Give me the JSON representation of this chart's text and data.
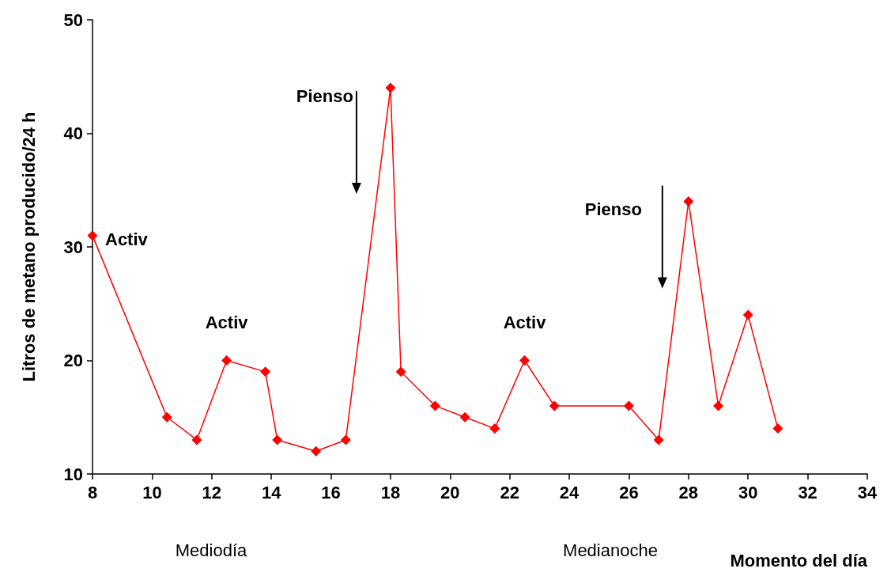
{
  "chart_data": {
    "type": "line",
    "xlabel": "Momento del día",
    "ylabel": "Litros de metano producido/24 h",
    "x": [
      8,
      10.5,
      11.5,
      12.5,
      13.8,
      14.2,
      15.5,
      16.5,
      18,
      18.35,
      19.5,
      20.5,
      21.5,
      22.5,
      23.5,
      26,
      27,
      28,
      29,
      30,
      31
    ],
    "series": [
      {
        "color": "#ff0000",
        "values": [
          31,
          15,
          13,
          20,
          19,
          13,
          12,
          13,
          44,
          19,
          16,
          15,
          14,
          20,
          16,
          16,
          13,
          34,
          16,
          24,
          14
        ]
      }
    ],
    "xlim": [
      8,
      34
    ],
    "xticks": [
      8,
      10,
      12,
      14,
      16,
      18,
      20,
      22,
      24,
      26,
      28,
      30,
      32,
      34
    ],
    "ylim": [
      10,
      50
    ],
    "yticks": [
      10,
      20,
      30,
      40,
      50
    ],
    "grid": false,
    "marker": "diamond",
    "line_style": "solid",
    "annotations": [
      {
        "text": "Activ",
        "x": 8,
        "y": 31
      },
      {
        "text": "Activ",
        "x": 12.5,
        "y": 20
      },
      {
        "text": "Activ",
        "x": 22.5,
        "y": 20
      },
      {
        "text": "Pienso",
        "x": 18,
        "y": 44
      },
      {
        "text": "Pienso",
        "x": 28,
        "y": 34
      },
      "Mediodía",
      "Medianoche"
    ]
  }
}
